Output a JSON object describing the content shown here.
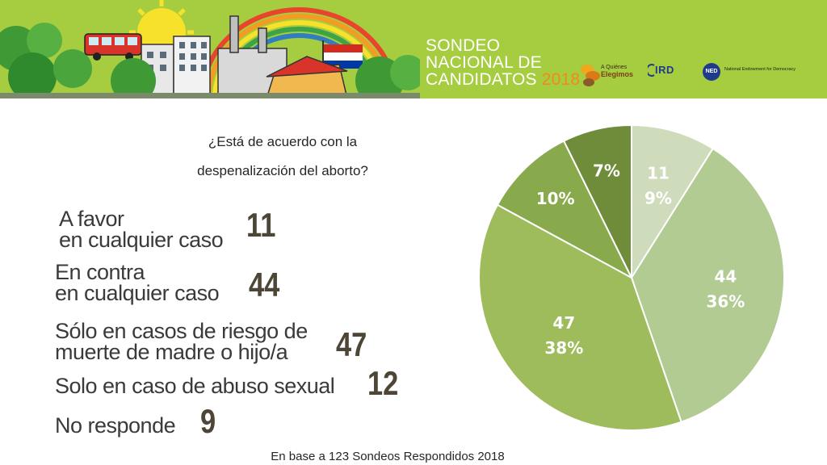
{
  "header": {
    "title_line1": "SONDEO",
    "title_line2": "NACIONAL DE",
    "title_line3": "CANDIDATOS",
    "title_year": "2018",
    "logo_aqe_line1": "A Quiénes",
    "logo_aqe_line2": "Elegimos",
    "logo_ird": "IRD",
    "logo_ned": "NED",
    "logo_ned_line1": "National Endowment for Democracy"
  },
  "chart_data": {
    "type": "pie",
    "title": "¿Está de acuerdo con la despenalización del aborto?",
    "categories": [
      "A favor en cualquier caso",
      "En contra en cualquier caso",
      "Sólo en casos de riesgo de muerte de madre o hijo/a",
      "Solo en caso de abuso sexual",
      "No responde"
    ],
    "values": [
      11,
      44,
      47,
      12,
      9
    ],
    "percent_labels": [
      "9%",
      "36%",
      "38%",
      "10%",
      "7%"
    ],
    "value_labels": [
      "11",
      "44",
      "47",
      "",
      ""
    ],
    "colors": [
      "#cfdcbb",
      "#b2cb92",
      "#9ebc5c",
      "#88a94c",
      "#6f8c3a"
    ],
    "note": "En base a 123 Sondeos Respondidos 2018"
  },
  "answers": [
    {
      "line1": "A favor",
      "line2": "en cualquier caso",
      "count": "11"
    },
    {
      "line1": "En contra",
      "line2": "en cualquier caso",
      "count": "44"
    },
    {
      "line1": "Sólo en casos de riesgo de",
      "line2": "muerte de madre o hijo/a",
      "count": "47"
    },
    {
      "line1": "Solo en caso de abuso sexual",
      "line2": "",
      "count": "12"
    },
    {
      "line1": "No responde",
      "line2": "",
      "count": "9"
    }
  ]
}
